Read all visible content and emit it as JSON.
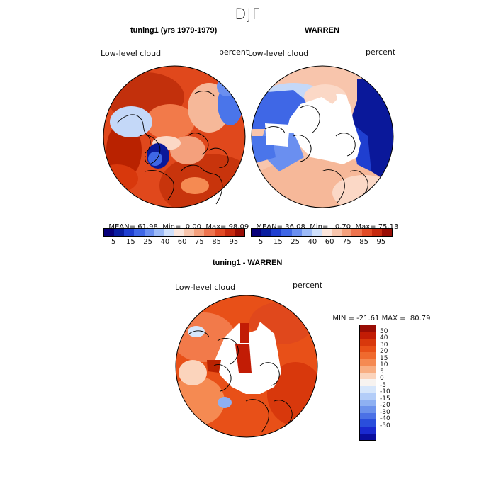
{
  "figure": {
    "season": "DJF",
    "panels": [
      {
        "title": "tuning1 (yrs 1979-1979)",
        "variable": "Low-level cloud",
        "units": "percent",
        "stats": {
          "mean_label": "MEAN=",
          "mean": "61.98",
          "min_label": "Min=",
          "min": "0.00",
          "max_label": "Max=",
          "max": "98.09"
        }
      },
      {
        "title": "WARREN",
        "variable": "Low-level cloud",
        "units": "percent",
        "stats": {
          "mean_label": "MEAN=",
          "mean": "36.08",
          "min_label": "Min=",
          "min": "0.70",
          "max_label": "Max=",
          "max": "75.13"
        }
      },
      {
        "title": "tuning1 - WARREN",
        "variable": "Low-level cloud",
        "units": "percent",
        "stats": {
          "min_label": "MIN =",
          "min": "-21.61",
          "max_label": "MAX =",
          "max": "80.79"
        }
      }
    ],
    "colorbar_top": {
      "colors": [
        "#08007a",
        "#0a1ea0",
        "#1f3fd0",
        "#3f67e6",
        "#6a8ff0",
        "#9cbaf7",
        "#cfe0fb",
        "#fbe6dc",
        "#f8c5ac",
        "#f4a07c",
        "#ee744e",
        "#e24b26",
        "#c62a10",
        "#990d05"
      ],
      "ticks": [
        "5",
        "15",
        "25",
        "40",
        "60",
        "75",
        "85",
        "95"
      ]
    },
    "colorbar_diff": {
      "colors": [
        "#990d05",
        "#c21c05",
        "#d8380c",
        "#e85018",
        "#f06a2e",
        "#f58a52",
        "#f8ae82",
        "#fbd4bc",
        "#f7f3f0",
        "#d6e6fb",
        "#b3cdf8",
        "#8eb0f2",
        "#6c92ec",
        "#4b71e6",
        "#2a4edc",
        "#1a2ad0",
        "#0a0e9e"
      ],
      "ticks": [
        "50",
        "40",
        "30",
        "20",
        "15",
        "10",
        "5",
        "0",
        "-5",
        "-10",
        "-15",
        "-20",
        "-30",
        "-40",
        "-50"
      ]
    },
    "colors": {
      "deep_red": "#b92200",
      "red": "#e0481c",
      "orange": "#f27a4a",
      "peach": "#f6b899",
      "pale": "#fbd8c6",
      "light_blue": "#c4d8f8",
      "blue": "#4a75ea",
      "navy": "#0a189a"
    }
  }
}
